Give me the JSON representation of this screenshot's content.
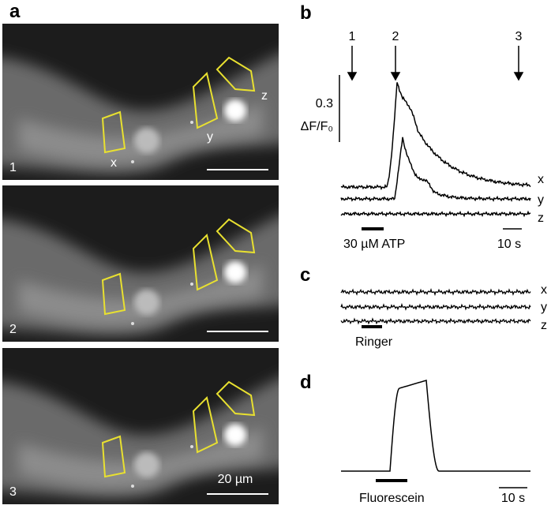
{
  "panels": {
    "a": {
      "label": "a",
      "images": [
        {
          "number": "1",
          "roi_labels": [
            "x",
            "y",
            "z"
          ]
        },
        {
          "number": "2"
        },
        {
          "number": "3",
          "scale_bar": "20 µm"
        }
      ]
    },
    "b": {
      "label": "b",
      "time_markers": [
        "1",
        "2",
        "3"
      ],
      "scale_value": "0.3",
      "scale_unit": "ΔF/F₀",
      "traces": [
        "x",
        "y",
        "z"
      ],
      "stimulus": "30 µM ATP",
      "time_scale": "10 s"
    },
    "c": {
      "label": "c",
      "traces": [
        "x",
        "y",
        "z"
      ],
      "stimulus": "Ringer"
    },
    "d": {
      "label": "d",
      "stimulus": "Fluorescein",
      "time_scale": "10 s"
    }
  }
}
